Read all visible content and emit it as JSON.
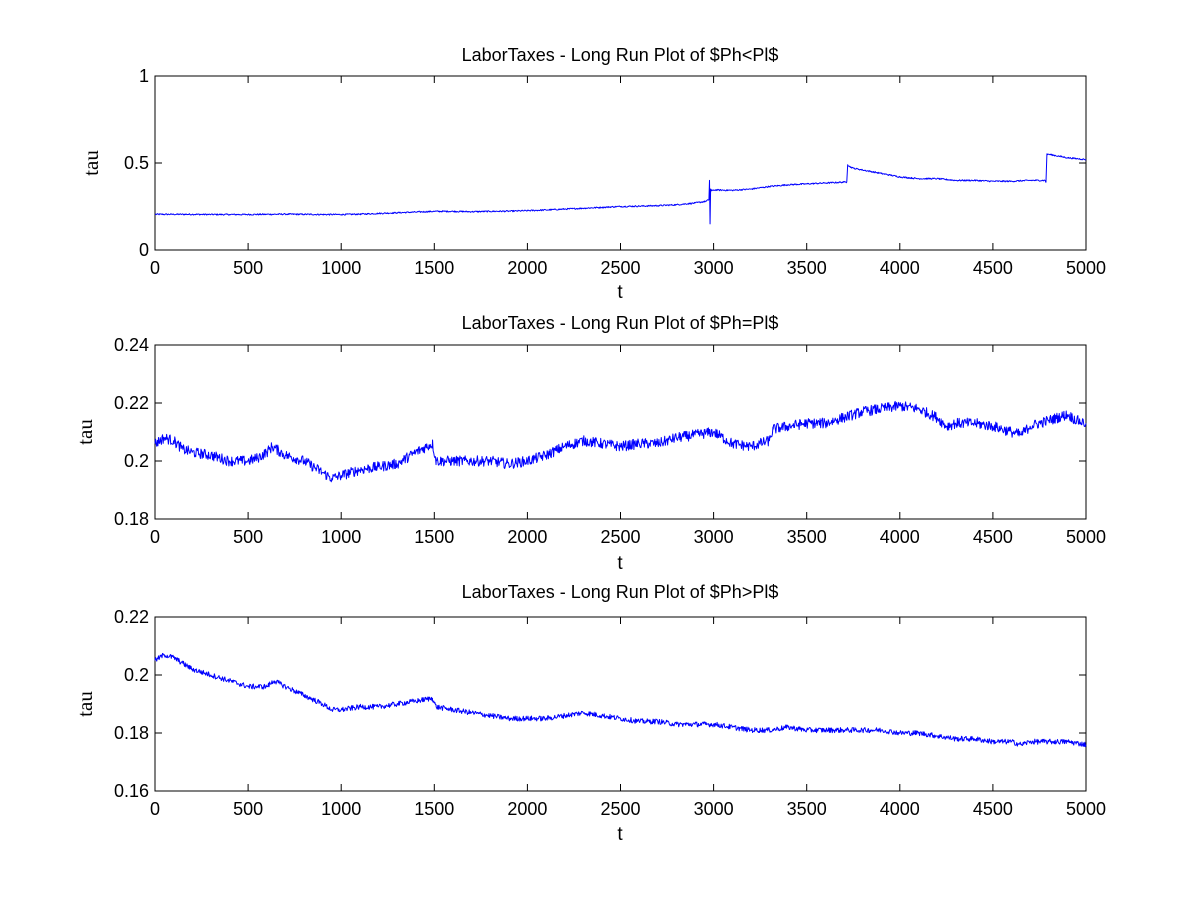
{
  "chart_data": [
    {
      "type": "line",
      "title": "LaborTaxes - Long Run Plot of $Ph<Pl$",
      "xlabel": "t",
      "ylabel": "tau",
      "xlim": [
        0,
        5000
      ],
      "ylim": [
        0,
        1
      ],
      "xticks": [
        "0",
        "500",
        "1000",
        "1500",
        "2000",
        "2500",
        "3000",
        "3500",
        "4000",
        "4500",
        "5000"
      ],
      "yticks": [
        "0",
        "0.5",
        "1"
      ],
      "grid": false,
      "color": "#0000ff",
      "series": [
        {
          "x": [
            0,
            100,
            200,
            300,
            400,
            500,
            600,
            700,
            800,
            900,
            1000,
            1100,
            1200,
            1300,
            1400,
            1500,
            1600,
            1700,
            1800,
            1900,
            2000,
            2100,
            2200,
            2300,
            2400,
            2500,
            2600,
            2700,
            2800,
            2900,
            2960,
            2975,
            2978,
            2981,
            2984,
            2990,
            3000,
            3100,
            3200,
            3300,
            3400,
            3500,
            3600,
            3700,
            3715,
            3720,
            3730,
            3750,
            3800,
            3900,
            4000,
            4100,
            4200,
            4300,
            4400,
            4500,
            4600,
            4700,
            4780,
            4785,
            4790,
            4800,
            4850,
            4900,
            4950,
            5000
          ],
          "y": [
            0.205,
            0.205,
            0.205,
            0.204,
            0.204,
            0.204,
            0.205,
            0.206,
            0.205,
            0.204,
            0.204,
            0.206,
            0.21,
            0.214,
            0.218,
            0.222,
            0.222,
            0.22,
            0.222,
            0.223,
            0.226,
            0.23,
            0.235,
            0.24,
            0.245,
            0.25,
            0.252,
            0.255,
            0.26,
            0.27,
            0.28,
            0.29,
            0.4,
            0.15,
            0.35,
            0.34,
            0.345,
            0.343,
            0.35,
            0.365,
            0.375,
            0.38,
            0.385,
            0.39,
            0.39,
            0.49,
            0.48,
            0.47,
            0.46,
            0.44,
            0.42,
            0.41,
            0.41,
            0.4,
            0.4,
            0.395,
            0.395,
            0.4,
            0.4,
            0.39,
            0.55,
            0.55,
            0.54,
            0.53,
            0.525,
            0.52
          ],
          "noise": 0.004
        }
      ]
    },
    {
      "type": "line",
      "title": "LaborTaxes - Long Run Plot of $Ph=Pl$",
      "xlabel": "t",
      "ylabel": "tau",
      "xlim": [
        0,
        5000
      ],
      "ylim": [
        0.18,
        0.24
      ],
      "xticks": [
        "0",
        "500",
        "1000",
        "1500",
        "2000",
        "2500",
        "3000",
        "3500",
        "4000",
        "4500",
        "5000"
      ],
      "yticks": [
        "0.18",
        "0.2",
        "0.22",
        "0.24"
      ],
      "grid": false,
      "color": "#0000ff",
      "series": [
        {
          "x": [
            0,
            50,
            100,
            150,
            200,
            300,
            400,
            500,
            550,
            600,
            630,
            700,
            800,
            900,
            950,
            1000,
            1100,
            1200,
            1300,
            1400,
            1490,
            1510,
            1600,
            1700,
            1800,
            1900,
            2000,
            2100,
            2200,
            2300,
            2400,
            2500,
            2600,
            2700,
            2800,
            2900,
            3000,
            3100,
            3200,
            3300,
            3320,
            3400,
            3500,
            3600,
            3700,
            3750,
            3800,
            3900,
            4000,
            4100,
            4200,
            4250,
            4300,
            4340,
            4400,
            4500,
            4600,
            4650,
            4700,
            4800,
            4900,
            4950,
            5000
          ],
          "y": [
            0.206,
            0.208,
            0.207,
            0.204,
            0.203,
            0.202,
            0.2,
            0.2,
            0.201,
            0.203,
            0.205,
            0.202,
            0.2,
            0.196,
            0.194,
            0.195,
            0.197,
            0.198,
            0.199,
            0.203,
            0.206,
            0.2,
            0.2,
            0.2,
            0.2,
            0.199,
            0.2,
            0.202,
            0.205,
            0.207,
            0.206,
            0.205,
            0.206,
            0.206,
            0.208,
            0.209,
            0.21,
            0.206,
            0.205,
            0.207,
            0.211,
            0.212,
            0.213,
            0.213,
            0.215,
            0.216,
            0.217,
            0.218,
            0.219,
            0.218,
            0.215,
            0.212,
            0.213,
            0.213,
            0.213,
            0.212,
            0.21,
            0.209,
            0.212,
            0.214,
            0.216,
            0.214,
            0.213
          ],
          "noise": 0.0018
        }
      ]
    },
    {
      "type": "line",
      "title": "LaborTaxes - Long Run Plot of $Ph>Pl$",
      "xlabel": "t",
      "ylabel": "tau",
      "xlim": [
        0,
        5000
      ],
      "ylim": [
        0.16,
        0.22
      ],
      "xticks": [
        "0",
        "500",
        "1000",
        "1500",
        "2000",
        "2500",
        "3000",
        "3500",
        "4000",
        "4500",
        "5000"
      ],
      "yticks": [
        "0.16",
        "0.18",
        "0.2",
        "0.22"
      ],
      "grid": false,
      "color": "#0000ff",
      "series": [
        {
          "x": [
            0,
            50,
            100,
            150,
            200,
            300,
            400,
            500,
            600,
            640,
            700,
            800,
            900,
            950,
            1000,
            1100,
            1200,
            1300,
            1400,
            1490,
            1510,
            1600,
            1700,
            1800,
            1900,
            2000,
            2100,
            2200,
            2300,
            2400,
            2500,
            2600,
            2700,
            2800,
            2900,
            3000,
            3100,
            3200,
            3300,
            3400,
            3500,
            3600,
            3700,
            3800,
            3900,
            4000,
            4100,
            4200,
            4300,
            4400,
            4500,
            4600,
            4650,
            4700,
            4800,
            4900,
            5000
          ],
          "y": [
            0.205,
            0.207,
            0.206,
            0.204,
            0.202,
            0.2,
            0.198,
            0.196,
            0.196,
            0.198,
            0.196,
            0.193,
            0.19,
            0.188,
            0.188,
            0.189,
            0.189,
            0.19,
            0.191,
            0.192,
            0.189,
            0.188,
            0.187,
            0.186,
            0.185,
            0.185,
            0.185,
            0.186,
            0.187,
            0.186,
            0.185,
            0.184,
            0.184,
            0.183,
            0.183,
            0.183,
            0.182,
            0.181,
            0.181,
            0.182,
            0.181,
            0.181,
            0.181,
            0.181,
            0.181,
            0.18,
            0.18,
            0.179,
            0.178,
            0.178,
            0.177,
            0.177,
            0.176,
            0.177,
            0.177,
            0.177,
            0.176
          ],
          "noise": 0.0009
        }
      ]
    }
  ]
}
